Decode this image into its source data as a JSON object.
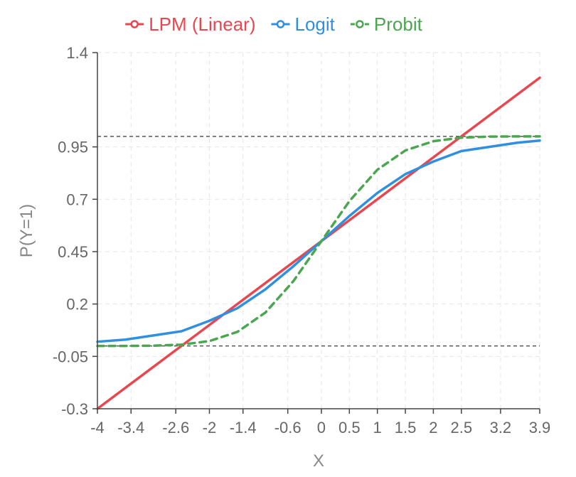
{
  "chart_data": {
    "type": "line",
    "title": "",
    "xlabel": "X",
    "ylabel": "P(Y=1)",
    "xlim": [
      -4,
      3.9
    ],
    "ylim": [
      -0.3,
      1.4
    ],
    "x_ticks": [
      -4,
      -3.4,
      -2.6,
      -2,
      -1.4,
      -0.6,
      0,
      0.5,
      1,
      1.5,
      2,
      2.5,
      3.2,
      3.9
    ],
    "x_tick_labels": [
      "-4",
      "-3.4",
      "-2.6",
      "-2",
      "-1.4",
      "-0.6",
      "0",
      "0.5",
      "1",
      "1.5",
      "2",
      "2.5",
      "3.2",
      "3.9"
    ],
    "y_ticks": [
      -0.3,
      -0.05,
      0.2,
      0.45,
      0.7,
      0.95,
      1.4
    ],
    "y_tick_labels": [
      "-0.3",
      "-0.05",
      "0.2",
      "0.45",
      "0.7",
      "0.95",
      "1.4"
    ],
    "grid": true,
    "legend_position": "top-center",
    "reference_lines": [
      0,
      1
    ],
    "series": [
      {
        "name": "LPM (Linear)",
        "color": "#e8474f",
        "dash": "solid",
        "x": [
          -4,
          -3,
          -2,
          -1,
          0,
          1,
          2,
          3,
          3.9
        ],
        "y": [
          -0.3,
          -0.1,
          0.1,
          0.3,
          0.5,
          0.7,
          0.9,
          1.1,
          1.28
        ]
      },
      {
        "name": "Logit",
        "color": "#2f8fe0",
        "dash": "solid",
        "x": [
          -4,
          -3.5,
          -3,
          -2.5,
          -2,
          -1.5,
          -1,
          -0.5,
          0,
          0.5,
          1,
          1.5,
          2,
          2.5,
          3,
          3.5,
          3.9
        ],
        "y": [
          0.02,
          0.03,
          0.05,
          0.07,
          0.12,
          0.18,
          0.27,
          0.38,
          0.5,
          0.62,
          0.73,
          0.82,
          0.88,
          0.93,
          0.95,
          0.97,
          0.98
        ]
      },
      {
        "name": "Probit",
        "color": "#4aa64f",
        "dash": "dashed",
        "x": [
          -4,
          -3.5,
          -3,
          -2.5,
          -2,
          -1.5,
          -1,
          -0.5,
          0,
          0.5,
          1,
          1.5,
          2,
          2.5,
          3,
          3.5,
          3.9
        ],
        "y": [
          0,
          0,
          0.001,
          0.006,
          0.023,
          0.067,
          0.159,
          0.309,
          0.5,
          0.691,
          0.841,
          0.933,
          0.977,
          0.994,
          0.999,
          1,
          1
        ]
      }
    ]
  }
}
